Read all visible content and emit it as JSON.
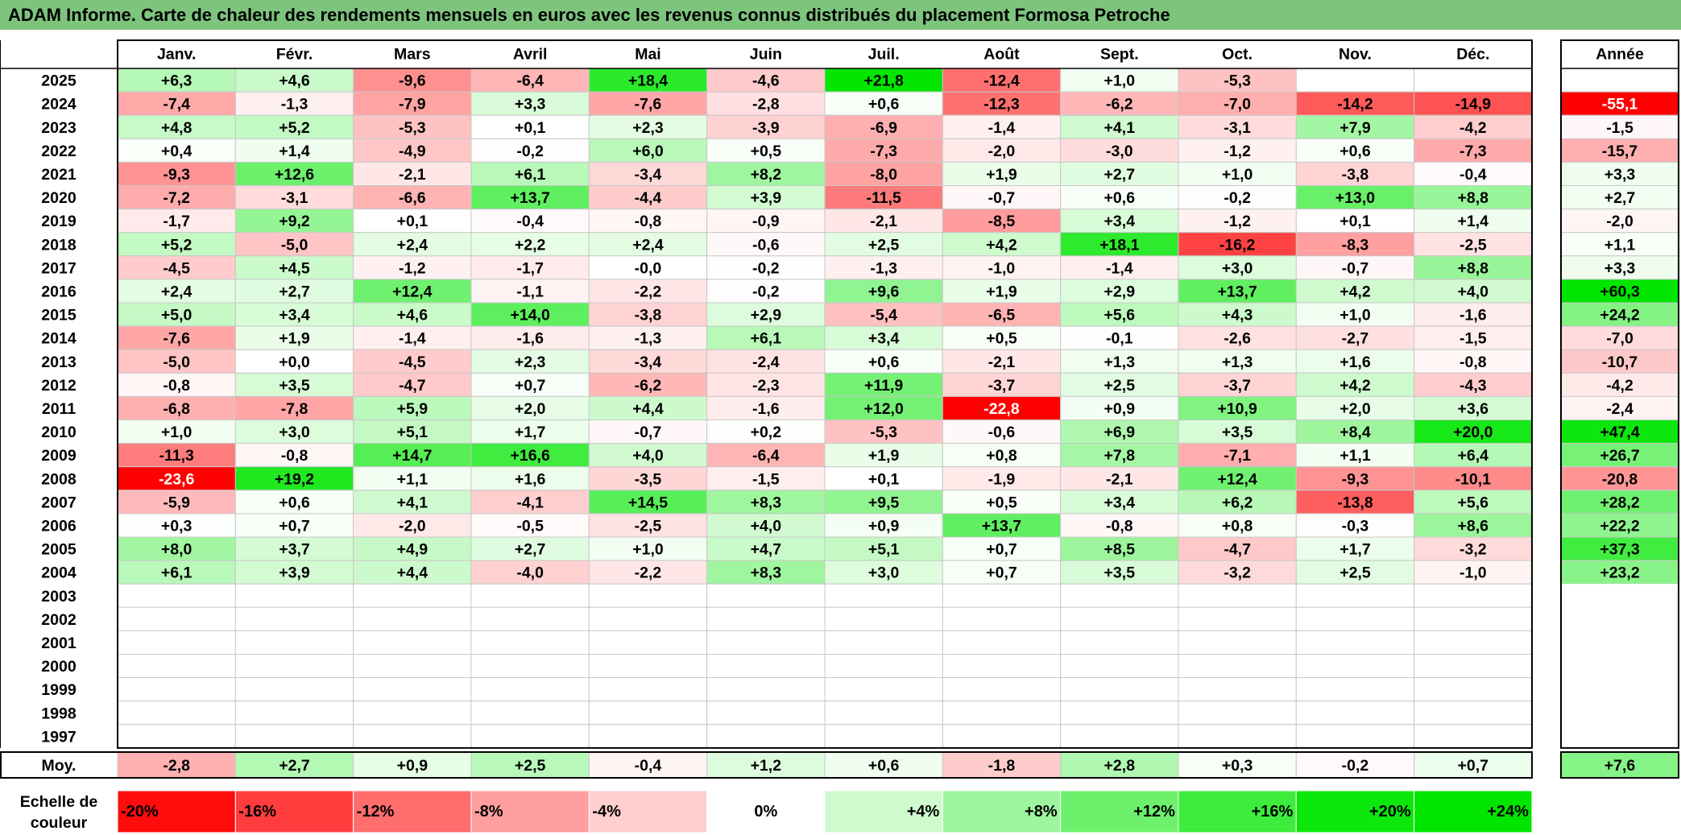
{
  "title": "ADAM Informe. Carte de chaleur des rendements mensuels en euros avec les revenus connus distribués du placement Formosa Petroche",
  "chart_data": {
    "type": "heatmap",
    "months": [
      "Janv.",
      "Févr.",
      "Mars",
      "Avril",
      "Mai",
      "Juin",
      "Juil.",
      "Août",
      "Sept.",
      "Oct.",
      "Nov.",
      "Déc."
    ],
    "year_header": "Année",
    "rows": [
      {
        "year": "2025",
        "values": [
          "+6,3",
          "+4,6",
          "-9,6",
          "-6,4",
          "+18,4",
          "-4,6",
          "+21,8",
          "-12,4",
          "+1,0",
          "-5,3",
          "",
          ""
        ],
        "annual": ""
      },
      {
        "year": "2024",
        "values": [
          "-7,4",
          "-1,3",
          "-7,9",
          "+3,3",
          "-7,6",
          "-2,8",
          "+0,6",
          "-12,3",
          "-6,2",
          "-7,0",
          "-14,2",
          "-14,9"
        ],
        "annual": "-55,1"
      },
      {
        "year": "2023",
        "values": [
          "+4,8",
          "+5,2",
          "-5,3",
          "+0,1",
          "+2,3",
          "-3,9",
          "-6,9",
          "-1,4",
          "+4,1",
          "-3,1",
          "+7,9",
          "-4,2"
        ],
        "annual": "-1,5"
      },
      {
        "year": "2022",
        "values": [
          "+0,4",
          "+1,4",
          "-4,9",
          "-0,2",
          "+6,0",
          "+0,5",
          "-7,3",
          "-2,0",
          "-3,0",
          "-1,2",
          "+0,6",
          "-7,3"
        ],
        "annual": "-15,7"
      },
      {
        "year": "2021",
        "values": [
          "-9,3",
          "+12,6",
          "-2,1",
          "+6,1",
          "-3,4",
          "+8,2",
          "-8,0",
          "+1,9",
          "+2,7",
          "+1,0",
          "-3,8",
          "-0,4"
        ],
        "annual": "+3,3"
      },
      {
        "year": "2020",
        "values": [
          "-7,2",
          "-3,1",
          "-6,6",
          "+13,7",
          "-4,4",
          "+3,9",
          "-11,5",
          "-0,7",
          "+0,6",
          "-0,2",
          "+13,0",
          "+8,8"
        ],
        "annual": "+2,7"
      },
      {
        "year": "2019",
        "values": [
          "-1,7",
          "+9,2",
          "+0,1",
          "-0,4",
          "-0,8",
          "-0,9",
          "-2,1",
          "-8,5",
          "+3,4",
          "-1,2",
          "+0,1",
          "+1,4"
        ],
        "annual": "-2,0"
      },
      {
        "year": "2018",
        "values": [
          "+5,2",
          "-5,0",
          "+2,4",
          "+2,2",
          "+2,4",
          "-0,6",
          "+2,5",
          "+4,2",
          "+18,1",
          "-16,2",
          "-8,3",
          "-2,5"
        ],
        "annual": "+1,1"
      },
      {
        "year": "2017",
        "values": [
          "-4,5",
          "+4,5",
          "-1,2",
          "-1,7",
          "-0,0",
          "-0,2",
          "-1,3",
          "-1,0",
          "-1,4",
          "+3,0",
          "-0,7",
          "+8,8"
        ],
        "annual": "+3,3"
      },
      {
        "year": "2016",
        "values": [
          "+2,4",
          "+2,7",
          "+12,4",
          "-1,1",
          "-2,2",
          "-0,2",
          "+9,6",
          "+1,9",
          "+2,9",
          "+13,7",
          "+4,2",
          "+4,0"
        ],
        "annual": "+60,3"
      },
      {
        "year": "2015",
        "values": [
          "+5,0",
          "+3,4",
          "+4,6",
          "+14,0",
          "-3,8",
          "+2,9",
          "-5,4",
          "-6,5",
          "+5,6",
          "+4,3",
          "+1,0",
          "-1,6"
        ],
        "annual": "+24,2"
      },
      {
        "year": "2014",
        "values": [
          "-7,6",
          "+1,9",
          "-1,4",
          "-1,6",
          "-1,3",
          "+6,1",
          "+3,4",
          "+0,5",
          "-0,1",
          "-2,6",
          "-2,7",
          "-1,5"
        ],
        "annual": "-7,0"
      },
      {
        "year": "2013",
        "values": [
          "-5,0",
          "+0,0",
          "-4,5",
          "+2,3",
          "-3,4",
          "-2,4",
          "+0,6",
          "-2,1",
          "+1,3",
          "+1,3",
          "+1,6",
          "-0,8"
        ],
        "annual": "-10,7"
      },
      {
        "year": "2012",
        "values": [
          "-0,8",
          "+3,5",
          "-4,7",
          "+0,7",
          "-6,2",
          "-2,3",
          "+11,9",
          "-3,7",
          "+2,5",
          "-3,7",
          "+4,2",
          "-4,3"
        ],
        "annual": "-4,2"
      },
      {
        "year": "2011",
        "values": [
          "-6,8",
          "-7,8",
          "+5,9",
          "+2,0",
          "+4,4",
          "-1,6",
          "+12,0",
          "-22,8",
          "+0,9",
          "+10,9",
          "+2,0",
          "+3,6"
        ],
        "annual": "-2,4"
      },
      {
        "year": "2010",
        "values": [
          "+1,0",
          "+3,0",
          "+5,1",
          "+1,7",
          "-0,7",
          "+0,2",
          "-5,3",
          "-0,6",
          "+6,9",
          "+3,5",
          "+8,4",
          "+20,0"
        ],
        "annual": "+47,4"
      },
      {
        "year": "2009",
        "values": [
          "-11,3",
          "-0,8",
          "+14,7",
          "+16,6",
          "+4,0",
          "-6,4",
          "+1,9",
          "+0,8",
          "+7,8",
          "-7,1",
          "+1,1",
          "+6,4"
        ],
        "annual": "+26,7"
      },
      {
        "year": "2008",
        "values": [
          "-23,6",
          "+19,2",
          "+1,1",
          "+1,6",
          "-3,5",
          "-1,5",
          "+0,1",
          "-1,9",
          "-2,1",
          "+12,4",
          "-9,3",
          "-10,1"
        ],
        "annual": "-20,8"
      },
      {
        "year": "2007",
        "values": [
          "-5,9",
          "+0,6",
          "+4,1",
          "-4,1",
          "+14,5",
          "+8,3",
          "+9,5",
          "+0,5",
          "+3,4",
          "+6,2",
          "-13,8",
          "+5,6"
        ],
        "annual": "+28,2"
      },
      {
        "year": "2006",
        "values": [
          "+0,3",
          "+0,7",
          "-2,0",
          "-0,5",
          "-2,5",
          "+4,0",
          "+0,9",
          "+13,7",
          "-0,8",
          "+0,8",
          "-0,3",
          "+8,6"
        ],
        "annual": "+22,2"
      },
      {
        "year": "2005",
        "values": [
          "+8,0",
          "+3,7",
          "+4,9",
          "+2,7",
          "+1,0",
          "+4,7",
          "+5,1",
          "+0,7",
          "+8,5",
          "-4,7",
          "+1,7",
          "-3,2"
        ],
        "annual": "+37,3"
      },
      {
        "year": "2004",
        "values": [
          "+6,1",
          "+3,9",
          "+4,4",
          "-4,0",
          "-2,2",
          "+8,3",
          "+3,0",
          "+0,7",
          "+3,5",
          "-3,2",
          "+2,5",
          "-1,0"
        ],
        "annual": "+23,2"
      },
      {
        "year": "2003",
        "values": [
          "",
          "",
          "",
          "",
          "",
          "",
          "",
          "",
          "",
          "",
          "",
          ""
        ],
        "annual": ""
      },
      {
        "year": "2002",
        "values": [
          "",
          "",
          "",
          "",
          "",
          "",
          "",
          "",
          "",
          "",
          "",
          ""
        ],
        "annual": ""
      },
      {
        "year": "2001",
        "values": [
          "",
          "",
          "",
          "",
          "",
          "",
          "",
          "",
          "",
          "",
          "",
          ""
        ],
        "annual": ""
      },
      {
        "year": "2000",
        "values": [
          "",
          "",
          "",
          "",
          "",
          "",
          "",
          "",
          "",
          "",
          "",
          ""
        ],
        "annual": ""
      },
      {
        "year": "1999",
        "values": [
          "",
          "",
          "",
          "",
          "",
          "",
          "",
          "",
          "",
          "",
          "",
          ""
        ],
        "annual": ""
      },
      {
        "year": "1998",
        "values": [
          "",
          "",
          "",
          "",
          "",
          "",
          "",
          "",
          "",
          "",
          "",
          ""
        ],
        "annual": ""
      },
      {
        "year": "1997",
        "values": [
          "",
          "",
          "",
          "",
          "",
          "",
          "",
          "",
          "",
          "",
          "",
          ""
        ],
        "annual": ""
      }
    ],
    "average": {
      "label": "Moy.",
      "values": [
        "-2,8",
        "+2,7",
        "+0,9",
        "+2,5",
        "-0,4",
        "+1,2",
        "+0,6",
        "-1,8",
        "+2,8",
        "+0,3",
        "-0,2",
        "+0,7"
      ],
      "annual": "+7,6"
    },
    "scale": {
      "label": [
        "Echelle de",
        "couleur"
      ],
      "steps": [
        {
          "text": "-20%",
          "value": -20
        },
        {
          "text": "-16%",
          "value": -16
        },
        {
          "text": "-12%",
          "value": -12
        },
        {
          "text": "-8%",
          "value": -8
        },
        {
          "text": "-4%",
          "value": -4
        },
        {
          "text": "0%",
          "value": 0
        },
        {
          "text": "+4%",
          "value": 4
        },
        {
          "text": "+8%",
          "value": 8
        },
        {
          "text": "+12%",
          "value": 12
        },
        {
          "text": "+16%",
          "value": 16
        },
        {
          "text": "+20%",
          "value": 20
        },
        {
          "text": "+24%",
          "value": 24
        }
      ]
    },
    "colors": {
      "negative": "#ff0000",
      "neutral": "#ffffff",
      "positive": "#00e600",
      "title_bar": "#7dc47d"
    }
  }
}
